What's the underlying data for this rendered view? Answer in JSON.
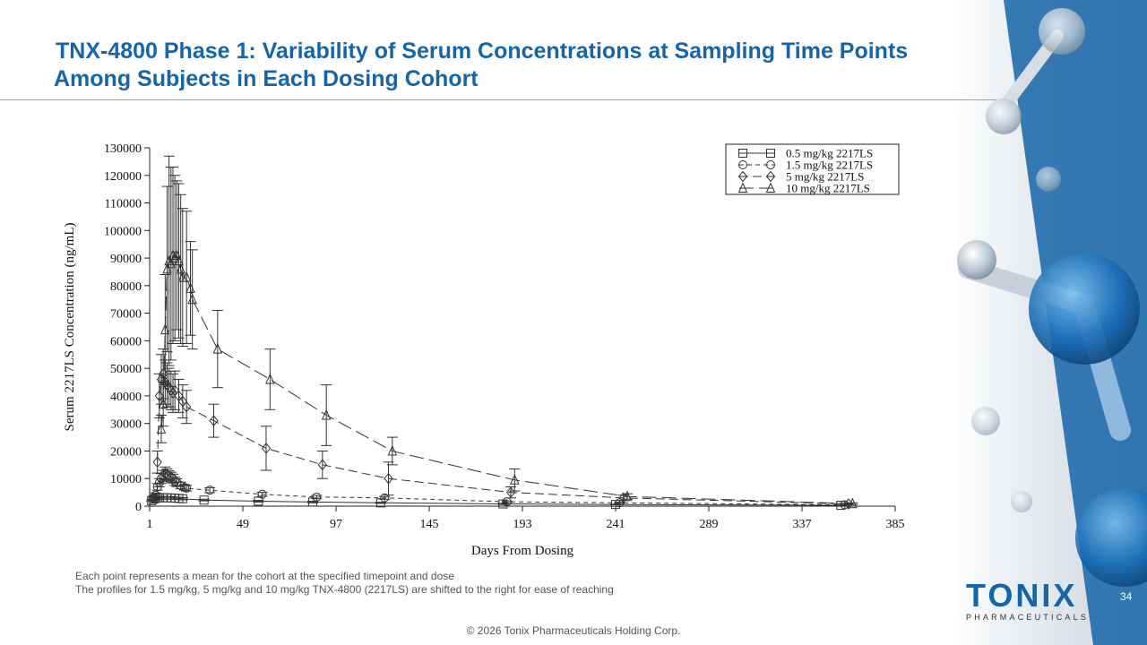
{
  "slide": {
    "title_line1": "TNX-4800 Phase 1: Variability of Serum Concentrations at Sampling Time Points",
    "title_line2": "Among Subjects in Each Dosing Cohort",
    "footnote_line1": "Each point represents a mean for the cohort at the specified timepoint and dose",
    "footnote_line2": "The profiles for 1.5 mg/kg, 5 mg/kg and 10 mg/kg TNX-4800 (2217LS) are shifted to the right for ease of reaching",
    "copyright": "© 2026 Tonix Pharmaceuticals Holding Corp.",
    "page_number": "34",
    "logo_word": "TONIX",
    "logo_sub": "PHARMACEUTICALS",
    "accent_color": "#1565a8"
  },
  "chart_data": {
    "type": "line",
    "title": "",
    "xlabel": "Days From Dosing",
    "ylabel": "Serum 2217LS Concentration (ng/mL)",
    "xlim": [
      1,
      385
    ],
    "ylim": [
      0,
      130000
    ],
    "xticks": [
      1,
      49,
      97,
      145,
      193,
      241,
      289,
      337,
      385
    ],
    "yticks": [
      0,
      10000,
      20000,
      30000,
      40000,
      50000,
      60000,
      70000,
      80000,
      90000,
      100000,
      110000,
      120000,
      130000
    ],
    "xtick_labels": [
      "1",
      "49",
      "97",
      "145",
      "193",
      "241",
      "289",
      "337",
      "385"
    ],
    "ytick_labels": [
      "0",
      "10000",
      "20000",
      "30000",
      "40000",
      "50000",
      "60000",
      "70000",
      "80000",
      "90000",
      "100000",
      "110000",
      "120000",
      "130000"
    ],
    "grid": false,
    "legend_position": "top-right",
    "error_bars": true,
    "series": [
      {
        "name": "0.5 mg/kg 2217LS",
        "marker": "square",
        "line": "solid",
        "x": [
          2,
          3,
          4,
          5,
          6,
          8,
          10,
          12,
          14,
          16,
          18,
          29,
          57,
          85,
          120,
          183,
          241,
          357
        ],
        "y": [
          2000,
          2500,
          2800,
          3000,
          3000,
          3100,
          3000,
          3000,
          2900,
          2800,
          2700,
          2200,
          1800,
          1500,
          1200,
          800,
          600,
          300
        ],
        "err": [
          300,
          400,
          400,
          500,
          500,
          500,
          500,
          500,
          400,
          400,
          400,
          300,
          300,
          300,
          200,
          200,
          100,
          100
        ]
      },
      {
        "name": "1.5 mg/kg 2217LS",
        "marker": "circle",
        "line": "dashed-short",
        "x": [
          3,
          4,
          5,
          6,
          7,
          8,
          9,
          10,
          11,
          12,
          13,
          14,
          15,
          17,
          19,
          20,
          32,
          59,
          87,
          122,
          185,
          243,
          359
        ],
        "y": [
          3000,
          4000,
          7000,
          8500,
          10000,
          11000,
          12000,
          11500,
          11000,
          10500,
          10000,
          9000,
          8500,
          7500,
          6800,
          6500,
          5800,
          4300,
          3300,
          3000,
          1600,
          1200,
          500
        ],
        "err": [
          600,
          800,
          1200,
          1500,
          1800,
          2000,
          2200,
          2000,
          1800,
          1800,
          1600,
          1500,
          1400,
          1200,
          1000,
          1000,
          900,
          700,
          600,
          500,
          300,
          200,
          100
        ]
      },
      {
        "name": "5 mg/kg 2217LS",
        "marker": "diamond",
        "line": "dashed",
        "x": [
          5,
          6,
          7,
          8,
          9,
          10,
          11,
          12,
          13,
          14,
          16,
          18,
          20,
          34,
          61,
          90,
          124,
          187,
          245,
          361
        ],
        "y": [
          16000,
          40000,
          46000,
          48000,
          45000,
          44000,
          43000,
          42000,
          41000,
          42000,
          40000,
          38000,
          36000,
          31000,
          21000,
          15000,
          10000,
          5000,
          3000,
          800
        ],
        "err": [
          4000,
          8000,
          9000,
          9000,
          8000,
          8000,
          7000,
          7000,
          7000,
          7000,
          6000,
          6000,
          6000,
          6000,
          8000,
          5000,
          6000,
          2000,
          1000,
          300
        ]
      },
      {
        "name": "10 mg/kg 2217LS",
        "marker": "triangle",
        "line": "longdash",
        "x": [
          7,
          8,
          9,
          10,
          11,
          12,
          13,
          14,
          15,
          16,
          17,
          18,
          20,
          22,
          23,
          36,
          63,
          92,
          126,
          189,
          247,
          363
        ],
        "y": [
          28000,
          37000,
          64000,
          86000,
          89000,
          88000,
          91000,
          90000,
          91000,
          89000,
          86000,
          83000,
          83000,
          79000,
          75000,
          57000,
          46000,
          33000,
          20000,
          9500,
          3500,
          900
        ],
        "err": [
          5000,
          8000,
          20000,
          30000,
          38000,
          35000,
          32000,
          30000,
          27000,
          28000,
          27000,
          25000,
          24000,
          17000,
          18000,
          14000,
          11000,
          11000,
          5000,
          4000,
          1000,
          300
        ]
      }
    ]
  }
}
